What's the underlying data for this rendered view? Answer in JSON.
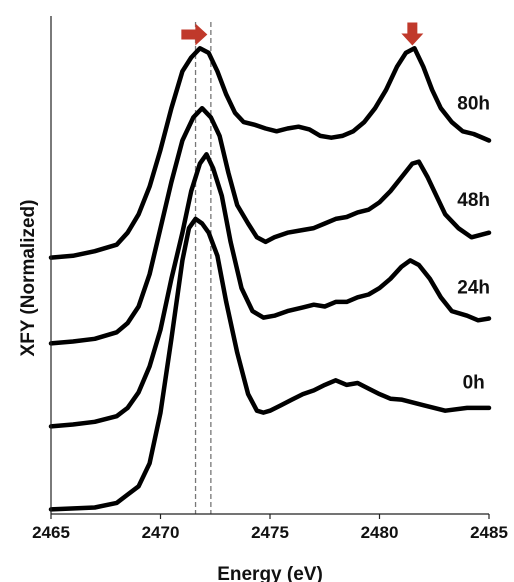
{
  "chart_data": {
    "type": "line",
    "xlabel": "Energy (eV)",
    "ylabel": "XFY (Normalized)",
    "xlim": [
      2465,
      2485
    ],
    "ylim": [
      0,
      5.4
    ],
    "x_ticks": [
      "2465",
      "2470",
      "2475",
      "2480",
      "2485"
    ],
    "y_ticks_labeled": false,
    "grid": false,
    "legend": "none",
    "line_color": "#000000",
    "marker_color": "#c0392b",
    "reference_lines": [
      {
        "x": 2471.6,
        "style": "dashed",
        "color": "#777777"
      },
      {
        "x": 2472.3,
        "style": "dashed",
        "color": "#777777"
      }
    ],
    "markers": [
      {
        "shape": "arrow-right",
        "x": 2471.5,
        "y": 5.2
      },
      {
        "shape": "arrow-down",
        "x": 2481.5,
        "y": 5.2
      }
    ],
    "series": [
      {
        "name": "0h",
        "x": [
          2465,
          2467,
          2468,
          2469,
          2469.5,
          2470,
          2470.5,
          2471,
          2471.3,
          2471.6,
          2471.9,
          2472.2,
          2472.6,
          2473,
          2473.5,
          2474,
          2474.4,
          2474.7,
          2475,
          2475.5,
          2476,
          2476.5,
          2477,
          2477.5,
          2478,
          2478.5,
          2479,
          2479.5,
          2480,
          2480.5,
          2481,
          2482,
          2483,
          2484,
          2485
        ],
        "y": [
          0.05,
          0.07,
          0.12,
          0.3,
          0.55,
          1.1,
          1.9,
          2.75,
          3.1,
          3.2,
          3.15,
          3.05,
          2.8,
          2.3,
          1.75,
          1.3,
          1.12,
          1.1,
          1.12,
          1.18,
          1.24,
          1.3,
          1.34,
          1.4,
          1.45,
          1.4,
          1.42,
          1.36,
          1.3,
          1.25,
          1.24,
          1.18,
          1.12,
          1.15,
          1.15
        ]
      },
      {
        "name": "24h",
        "x": [
          2465,
          2466,
          2467,
          2468,
          2468.5,
          2469,
          2469.5,
          2470,
          2470.5,
          2471,
          2471.4,
          2471.8,
          2472.1,
          2472.4,
          2472.8,
          2473.2,
          2473.7,
          2474.2,
          2474.7,
          2475.2,
          2475.8,
          2476.5,
          2477,
          2477.5,
          2478,
          2478.5,
          2479,
          2479.5,
          2480,
          2480.5,
          2481,
          2481.4,
          2481.8,
          2482.3,
          2482.8,
          2483.3,
          2484,
          2484.5,
          2485
        ],
        "y": [
          0.95,
          0.97,
          1.0,
          1.06,
          1.15,
          1.32,
          1.6,
          2.0,
          2.55,
          3.05,
          3.5,
          3.8,
          3.9,
          3.75,
          3.45,
          2.95,
          2.45,
          2.2,
          2.13,
          2.15,
          2.2,
          2.24,
          2.27,
          2.25,
          2.3,
          2.3,
          2.35,
          2.38,
          2.45,
          2.55,
          2.68,
          2.75,
          2.7,
          2.55,
          2.35,
          2.2,
          2.15,
          2.1,
          2.12
        ]
      },
      {
        "name": "48h",
        "x": [
          2465,
          2466,
          2467,
          2468,
          2468.5,
          2469,
          2469.5,
          2470,
          2470.5,
          2471,
          2471.5,
          2471.9,
          2472.3,
          2472.7,
          2473.1,
          2473.5,
          2474,
          2474.4,
          2474.8,
          2475.2,
          2475.8,
          2476.5,
          2477,
          2477.5,
          2478,
          2478.5,
          2479,
          2479.5,
          2480,
          2480.5,
          2481,
          2481.5,
          2481.8,
          2482.2,
          2482.6,
          2483,
          2483.6,
          2484.2,
          2485
        ],
        "y": [
          1.85,
          1.87,
          1.9,
          1.97,
          2.07,
          2.25,
          2.6,
          3.1,
          3.6,
          4.05,
          4.3,
          4.4,
          4.3,
          4.1,
          3.7,
          3.35,
          3.15,
          3.0,
          2.95,
          3.0,
          3.05,
          3.08,
          3.1,
          3.15,
          3.2,
          3.22,
          3.27,
          3.3,
          3.38,
          3.5,
          3.65,
          3.8,
          3.82,
          3.65,
          3.45,
          3.25,
          3.1,
          3.0,
          3.05
        ]
      },
      {
        "name": "80h",
        "x": [
          2465,
          2466,
          2467,
          2468,
          2468.5,
          2469,
          2469.5,
          2470,
          2470.5,
          2471,
          2471.4,
          2471.8,
          2472.2,
          2472.6,
          2473,
          2473.4,
          2473.8,
          2474.3,
          2474.8,
          2475.3,
          2475.8,
          2476.3,
          2476.8,
          2477.3,
          2477.8,
          2478.3,
          2478.8,
          2479.3,
          2479.8,
          2480.3,
          2480.8,
          2481.2,
          2481.6,
          2482,
          2482.4,
          2482.8,
          2483.3,
          2483.8,
          2484.3,
          2485
        ],
        "y": [
          2.78,
          2.8,
          2.85,
          2.92,
          3.05,
          3.25,
          3.55,
          3.95,
          4.4,
          4.8,
          4.95,
          5.05,
          5.0,
          4.8,
          4.55,
          4.35,
          4.25,
          4.22,
          4.18,
          4.15,
          4.18,
          4.2,
          4.17,
          4.1,
          4.08,
          4.1,
          4.15,
          4.25,
          4.4,
          4.6,
          4.85,
          5.0,
          5.05,
          4.85,
          4.6,
          4.4,
          4.25,
          4.15,
          4.12,
          4.05
        ]
      }
    ]
  }
}
